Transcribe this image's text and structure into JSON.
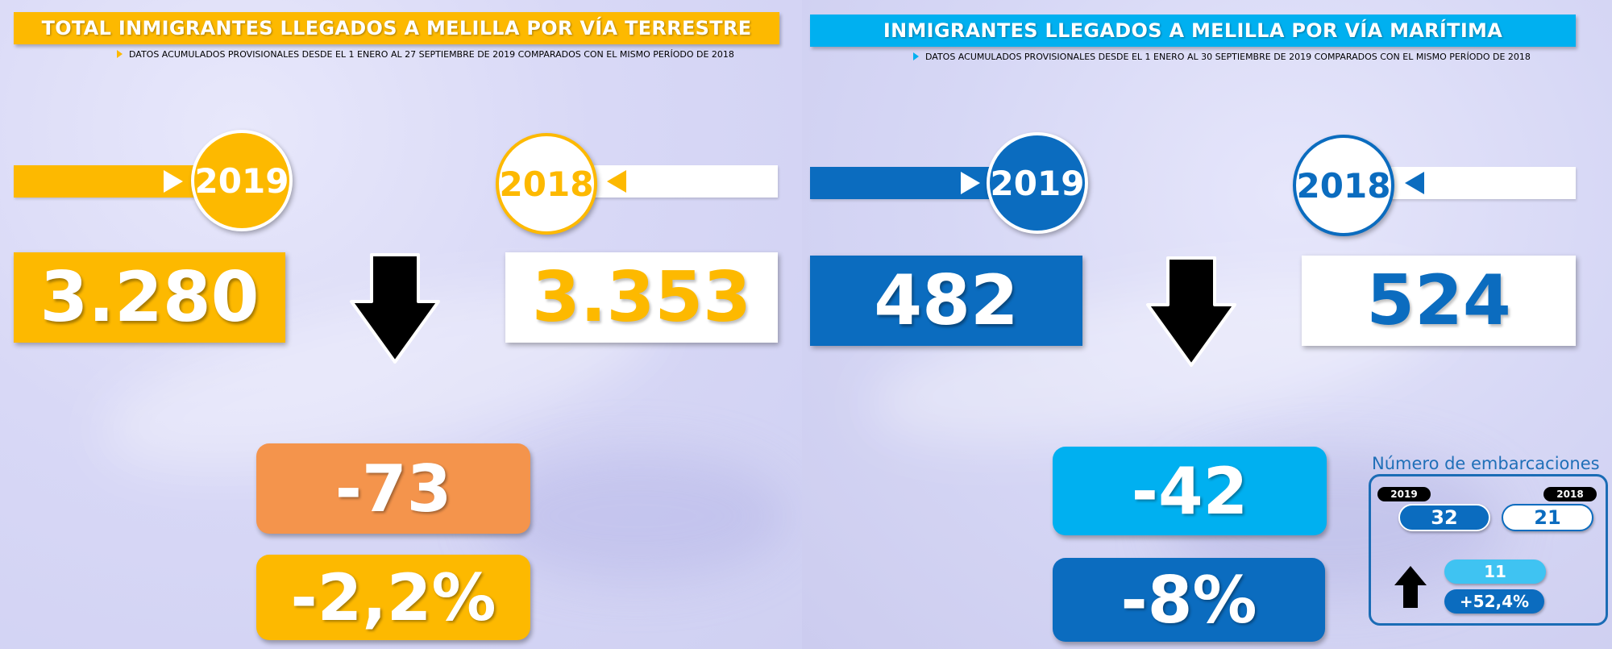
{
  "colors": {
    "land_accent": "#FDB900",
    "land_orange": "#F4944C",
    "sea_light": "#00B0F0",
    "sea_dark": "#0B6CBF",
    "black": "#000000",
    "white": "#FFFFFF"
  },
  "land": {
    "title": "TOTAL INMIGRANTES LLEGADOS A MELILLA POR VÍA TERRESTRE",
    "subtitle": "DATOS ACUMULADOS PROVISIONALES DESDE EL 1 ENERO AL 27 SEPTIEMBRE DE 2019 COMPARADOS CON EL MISMO PERÍODO DE 2018",
    "year_current": "2019",
    "year_previous": "2018",
    "value_current": "3.280",
    "value_previous": "3.353",
    "trend_icon": "arrow-down-icon",
    "difference": "-73",
    "percent_change": "-2,2%"
  },
  "sea": {
    "title": "INMIGRANTES LLEGADOS A MELILLA POR VÍA MARÍTIMA",
    "subtitle": "DATOS ACUMULADOS PROVISIONALES DESDE EL 1 ENERO AL 30 SEPTIEMBRE DE 2019 COMPARADOS CON EL MISMO PERÍODO DE 2018",
    "year_current": "2019",
    "year_previous": "2018",
    "value_current": "482",
    "value_previous": "524",
    "trend_icon": "arrow-down-icon",
    "difference": "-42",
    "percent_change": "-8%",
    "boats": {
      "title": "Número de embarcaciones",
      "label_current": "2019",
      "label_previous": "2018",
      "value_current": "32",
      "value_previous": "21",
      "trend_icon": "arrow-up-icon",
      "difference": "11",
      "percent_change": "+52,4%"
    }
  }
}
